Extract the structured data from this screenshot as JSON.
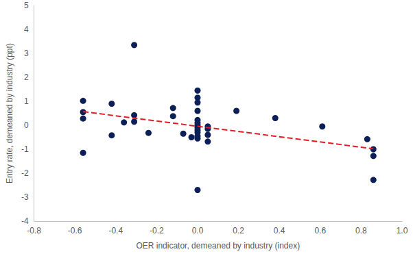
{
  "chart_data": {
    "type": "scatter",
    "x_label": "OER indicator, demeaned by industry (index)",
    "y_label": "Entry rate, demeaned by industry (ppt)",
    "xlim": [
      -0.8,
      1.0
    ],
    "xticks": [
      -0.8,
      -0.6,
      -0.4,
      -0.2,
      {
        "value": 0,
        "label": "0.0"
      },
      0.2,
      0.4,
      0.6,
      0.8,
      {
        "value": 1.0,
        "label": "1.0"
      }
    ],
    "ylim": [
      -4,
      5
    ],
    "yticks": [
      -4,
      -3,
      -2,
      -1,
      0,
      1,
      2,
      3,
      4,
      5
    ],
    "grid": false,
    "series": [
      {
        "type": "scatter",
        "color": "#0c2057",
        "marker": "circle",
        "x": [
          -0.56,
          -0.56,
          -0.56,
          -0.56,
          -0.42,
          -0.42,
          -0.36,
          -0.31,
          -0.31,
          -0.31,
          -0.24,
          -0.12,
          -0.12,
          -0.07,
          -0.03,
          0,
          0,
          0,
          0,
          0,
          0,
          0,
          0,
          0,
          0,
          0,
          0,
          0,
          0.05,
          0.05,
          0.05,
          0.05,
          0.19,
          0.38,
          0.61,
          0.83,
          0.86,
          0.86,
          0.86
        ],
        "values": [
          1.02,
          0.55,
          0.28,
          -1.15,
          0.9,
          -0.42,
          0.12,
          3.35,
          0.42,
          0.15,
          -0.32,
          0.72,
          0.38,
          -0.35,
          -0.5,
          1.45,
          1.15,
          0.95,
          0.6,
          0.22,
          0.1,
          0.0,
          -0.1,
          -0.2,
          -0.3,
          -0.45,
          -0.55,
          -2.7,
          -0.05,
          -0.15,
          -0.4,
          -0.68,
          0.6,
          0.3,
          -0.05,
          -0.58,
          -1.0,
          -1.28,
          -2.28
        ]
      },
      {
        "type": "line",
        "color": "#e31b23",
        "line_style": "dashed",
        "x": [
          -0.56,
          0.86
        ],
        "values": [
          0.57,
          -0.98
        ]
      }
    ]
  }
}
